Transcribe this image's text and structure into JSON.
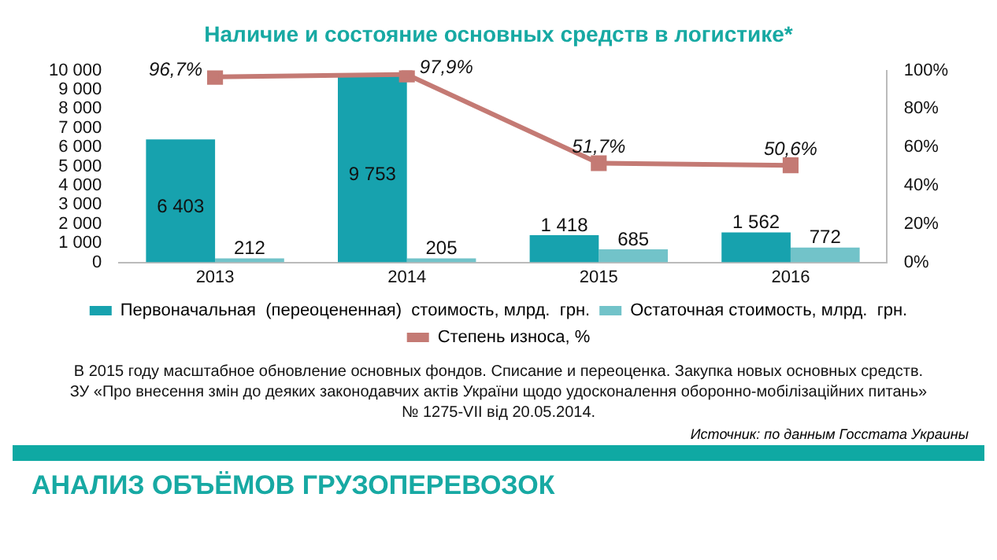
{
  "chart_data": {
    "type": "bar",
    "title": "Наличие и состояние основных средств в логистике*",
    "categories": [
      "2013",
      "2014",
      "2015",
      "2016"
    ],
    "series": [
      {
        "name": "Первоначальная  (переоцененная)  стоимость, млрд.  грн.",
        "color": "#17a2ae",
        "values": [
          6403,
          9753,
          1418,
          1562
        ],
        "value_labels": [
          "6 403",
          "9 753",
          "1 418",
          "1 562"
        ]
      },
      {
        "name": "Остаточная стоимость, млрд.  грн.",
        "color": "#72c3c9",
        "values": [
          212,
          205,
          685,
          772
        ],
        "value_labels": [
          "212",
          "205",
          "685",
          "772"
        ]
      },
      {
        "name": "Степень износа, %",
        "type": "line",
        "axis": "y2",
        "color": "#c47a74",
        "marker": "square",
        "values": [
          96.7,
          97.9,
          51.7,
          50.6
        ],
        "value_labels": [
          "96,7%",
          "97,9%",
          "51,7%",
          "50,6%"
        ]
      }
    ],
    "ylim": [
      0,
      10000
    ],
    "yticks": [
      0,
      1000,
      2000,
      3000,
      4000,
      5000,
      6000,
      7000,
      8000,
      9000,
      10000
    ],
    "y2lim": [
      0,
      100
    ],
    "y2ticks": [
      {
        "value": 0,
        "label": "0%"
      },
      {
        "value": 20,
        "label": "20%"
      },
      {
        "value": 40,
        "label": "40%"
      },
      {
        "value": 60,
        "label": "60%"
      },
      {
        "value": 80,
        "label": "80%"
      },
      {
        "value": 100,
        "label": "100%"
      }
    ],
    "legend": "bottom",
    "grid": false,
    "annotations": [
      "В 2015 году масштабное обновление основных фондов. Списание и переоценка. Закупка новых основных средств.",
      "ЗУ «Про внесення змін до деяких законодавчих актів України щодо удосконалення  оборонно-мобілізаційних  питань»",
      "№ 1275-VII від 20.05.2014.",
      "Источник: по данным Госстата Украины",
      "АНАЛИЗ ОБЪЁМОВ ГРУЗОПЕРЕВОЗОК"
    ]
  }
}
